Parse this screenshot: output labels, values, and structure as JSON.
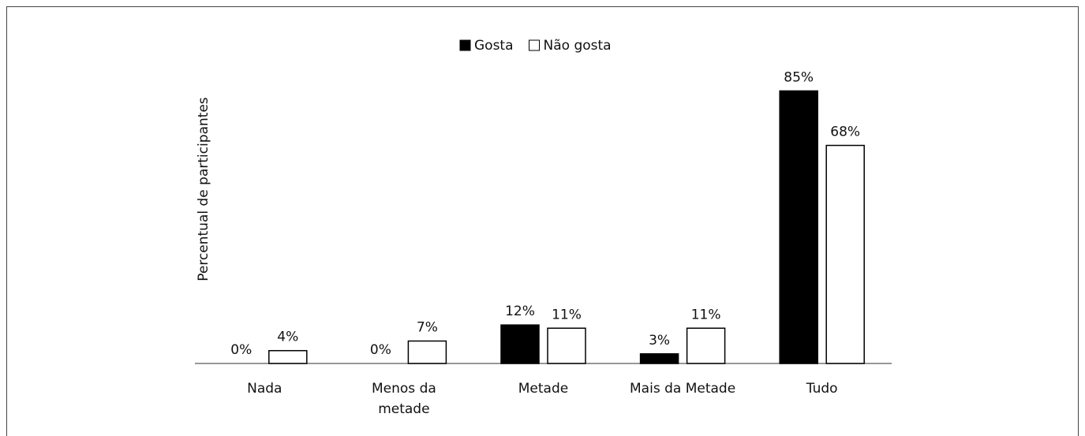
{
  "chart_data": {
    "type": "bar",
    "y_label": "Percentual de participantes",
    "categories": [
      "Nada",
      "Menos da\nmetade",
      "Metade",
      "Mais da Metade",
      "Tudo"
    ],
    "series": [
      {
        "name": "Gosta",
        "color": "#000000",
        "values": [
          0,
          0,
          12,
          3,
          85
        ],
        "value_labels": [
          "0%",
          "0%",
          "12%",
          "3%",
          "85%"
        ]
      },
      {
        "name": "Não gosta",
        "color": "#ffffff",
        "values": [
          4,
          7,
          11,
          11,
          68
        ],
        "value_labels": [
          "4%",
          "7%",
          "11%",
          "11%",
          "68%"
        ]
      }
    ],
    "ylim": [
      0,
      90
    ],
    "legend": "top"
  }
}
